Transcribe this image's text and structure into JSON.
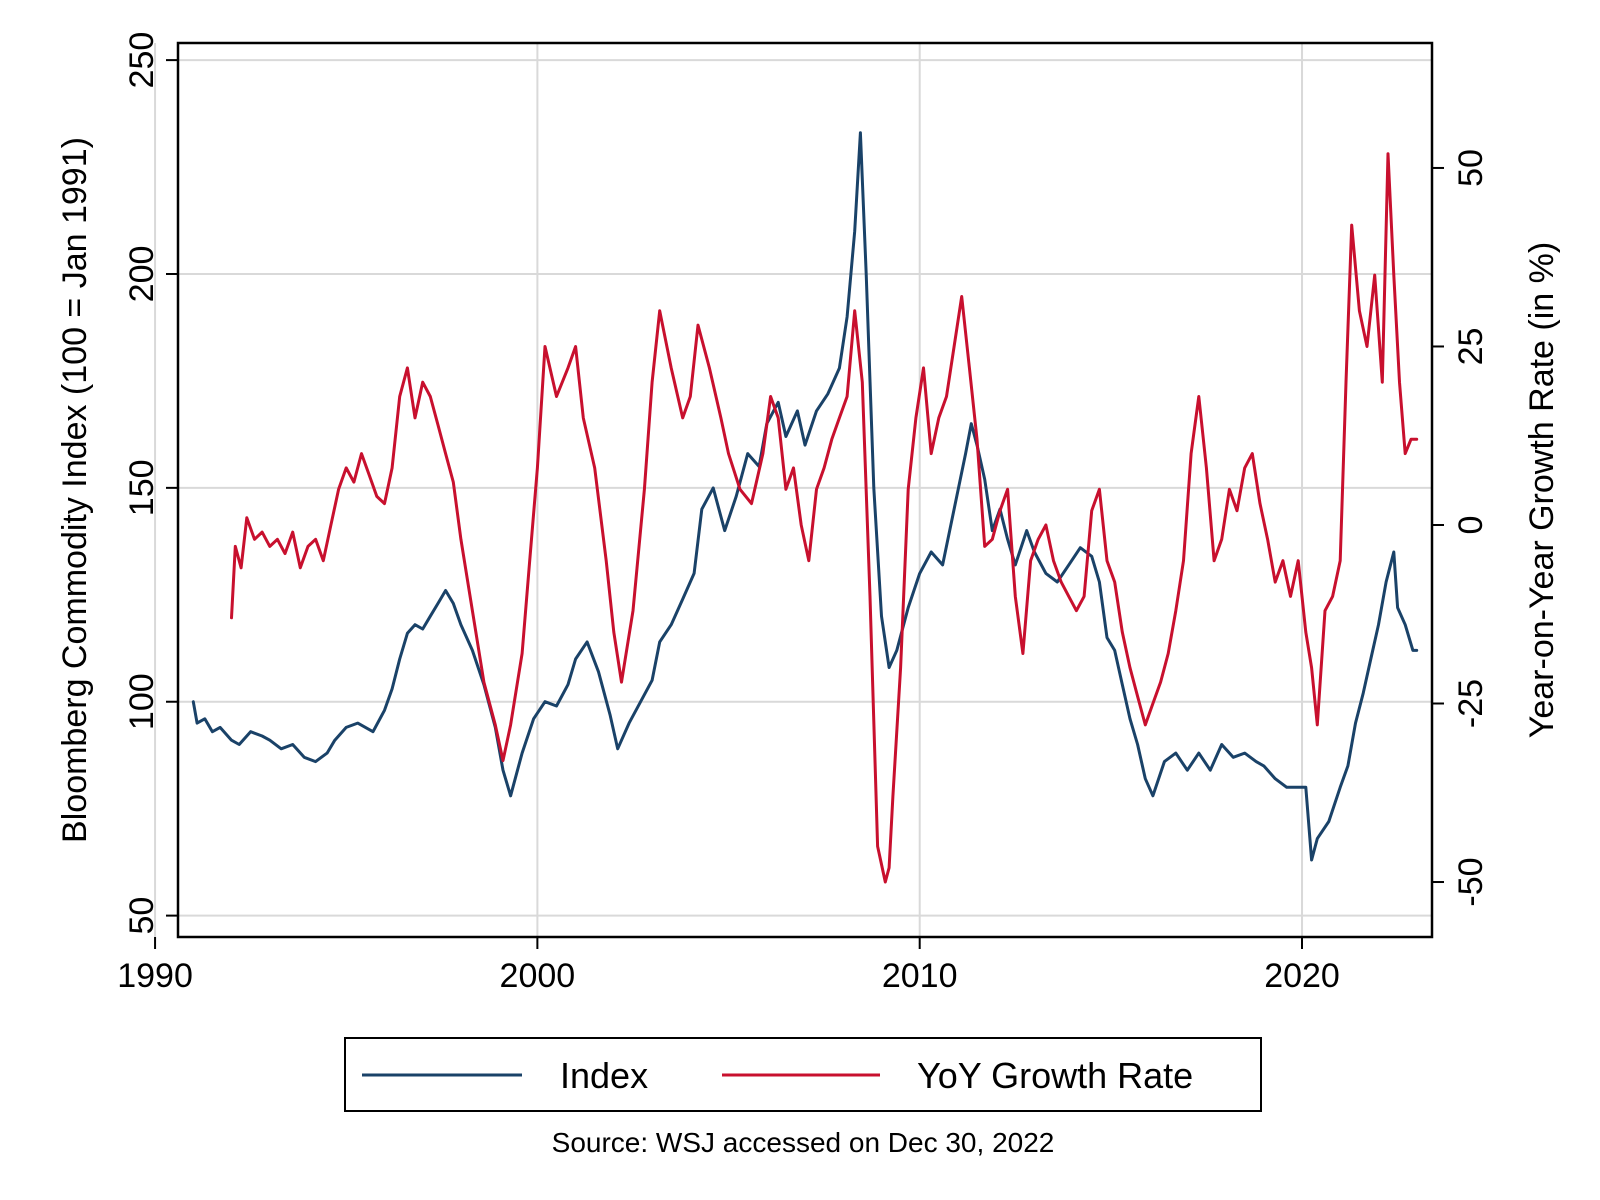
{
  "chart_data": {
    "type": "line",
    "title": "",
    "xlabel": "",
    "ylabel": "Bloomberg Commodity Index (100 = Jan 1991)",
    "y2label": "Year-on-Year Growth Rate (in %)",
    "source_note": "Source: WSJ accessed on Dec 30, 2022",
    "xlim": [
      1990.6,
      2023.4
    ],
    "ylim": [
      45,
      254
    ],
    "y2lim": [
      -57.7,
      67.5
    ],
    "x_ticks": [
      1990,
      2000,
      2010,
      2020
    ],
    "y_ticks": [
      50,
      100,
      150,
      200,
      250
    ],
    "y2_ticks": [
      -50,
      -25,
      0,
      25,
      50
    ],
    "grid": true,
    "legend_position": "bottom",
    "series": [
      {
        "name": "Index",
        "axis": "left",
        "color": "#1a4268",
        "x": [
          1991.0,
          1991.1,
          1991.3,
          1991.5,
          1991.7,
          1992.0,
          1992.2,
          1992.5,
          1992.8,
          1993.0,
          1993.3,
          1993.6,
          1993.9,
          1994.2,
          1994.5,
          1994.7,
          1995.0,
          1995.3,
          1995.7,
          1996.0,
          1996.2,
          1996.4,
          1996.6,
          1996.8,
          1997.0,
          1997.2,
          1997.4,
          1997.6,
          1997.8,
          1998.0,
          1998.3,
          1998.6,
          1998.9,
          1999.1,
          1999.3,
          1999.6,
          1999.9,
          2000.2,
          2000.5,
          2000.8,
          2001.0,
          2001.3,
          2001.6,
          2001.9,
          2002.1,
          2002.4,
          2002.7,
          2003.0,
          2003.2,
          2003.5,
          2003.8,
          2004.1,
          2004.3,
          2004.6,
          2004.9,
          2005.2,
          2005.5,
          2005.8,
          2006.0,
          2006.3,
          2006.5,
          2006.8,
          2007.0,
          2007.3,
          2007.6,
          2007.9,
          2008.1,
          2008.3,
          2008.45,
          2008.6,
          2008.8,
          2009.0,
          2009.2,
          2009.4,
          2009.7,
          2010.0,
          2010.3,
          2010.6,
          2010.9,
          2011.2,
          2011.35,
          2011.5,
          2011.7,
          2011.9,
          2012.1,
          2012.3,
          2012.5,
          2012.8,
          2013.0,
          2013.3,
          2013.6,
          2013.9,
          2014.2,
          2014.5,
          2014.7,
          2014.9,
          2015.1,
          2015.3,
          2015.5,
          2015.7,
          2015.9,
          2016.1,
          2016.4,
          2016.7,
          2017.0,
          2017.3,
          2017.6,
          2017.9,
          2018.2,
          2018.5,
          2018.8,
          2019.0,
          2019.3,
          2019.6,
          2019.9,
          2020.1,
          2020.25,
          2020.4,
          2020.7,
          2021.0,
          2021.2,
          2021.4,
          2021.6,
          2021.8,
          2022.0,
          2022.2,
          2022.4,
          2022.5,
          2022.7,
          2022.9,
          2023.0
        ],
        "y": [
          100,
          95,
          96,
          93,
          94,
          91,
          90,
          93,
          92,
          91,
          89,
          90,
          87,
          86,
          88,
          91,
          94,
          95,
          93,
          98,
          103,
          110,
          116,
          118,
          117,
          120,
          123,
          126,
          123,
          118,
          112,
          104,
          94,
          84,
          78,
          88,
          96,
          100,
          99,
          104,
          110,
          114,
          107,
          97,
          89,
          95,
          100,
          105,
          114,
          118,
          124,
          130,
          145,
          150,
          140,
          148,
          158,
          155,
          165,
          170,
          162,
          168,
          160,
          168,
          172,
          178,
          190,
          210,
          233,
          200,
          150,
          120,
          108,
          112,
          122,
          130,
          135,
          132,
          145,
          158,
          165,
          160,
          152,
          140,
          145,
          138,
          132,
          140,
          135,
          130,
          128,
          132,
          136,
          134,
          128,
          115,
          112,
          104,
          96,
          90,
          82,
          78,
          86,
          88,
          84,
          88,
          84,
          90,
          87,
          88,
          86,
          85,
          82,
          80,
          80,
          80,
          63,
          68,
          72,
          80,
          85,
          95,
          102,
          110,
          118,
          128,
          135,
          122,
          118,
          112,
          112
        ]
      },
      {
        "name": "YoY Growth Rate",
        "axis": "right",
        "color": "#c8102e",
        "x": [
          1992.0,
          1992.1,
          1992.25,
          1992.4,
          1992.6,
          1992.8,
          1993.0,
          1993.2,
          1993.4,
          1993.6,
          1993.8,
          1994.0,
          1994.2,
          1994.4,
          1994.6,
          1994.8,
          1995.0,
          1995.2,
          1995.4,
          1995.6,
          1995.8,
          1996.0,
          1996.2,
          1996.4,
          1996.6,
          1996.8,
          1997.0,
          1997.2,
          1997.4,
          1997.6,
          1997.8,
          1998.0,
          1998.3,
          1998.6,
          1998.9,
          1999.1,
          1999.3,
          1999.6,
          1999.8,
          2000.0,
          2000.2,
          2000.5,
          2000.8,
          2001.0,
          2001.2,
          2001.5,
          2001.8,
          2002.0,
          2002.2,
          2002.5,
          2002.8,
          2003.0,
          2003.2,
          2003.5,
          2003.8,
          2004.0,
          2004.2,
          2004.5,
          2004.8,
          2005.0,
          2005.3,
          2005.6,
          2005.9,
          2006.1,
          2006.3,
          2006.5,
          2006.7,
          2006.9,
          2007.1,
          2007.3,
          2007.5,
          2007.7,
          2007.9,
          2008.1,
          2008.3,
          2008.5,
          2008.7,
          2008.9,
          2009.1,
          2009.2,
          2009.3,
          2009.5,
          2009.7,
          2009.9,
          2010.1,
          2010.3,
          2010.5,
          2010.7,
          2010.9,
          2011.1,
          2011.3,
          2011.5,
          2011.7,
          2011.9,
          2012.1,
          2012.3,
          2012.5,
          2012.7,
          2012.9,
          2013.1,
          2013.3,
          2013.5,
          2013.7,
          2013.9,
          2014.1,
          2014.3,
          2014.5,
          2014.7,
          2014.9,
          2015.1,
          2015.3,
          2015.5,
          2015.7,
          2015.9,
          2016.1,
          2016.3,
          2016.5,
          2016.7,
          2016.9,
          2017.1,
          2017.3,
          2017.5,
          2017.7,
          2017.9,
          2018.1,
          2018.3,
          2018.5,
          2018.7,
          2018.9,
          2019.1,
          2019.3,
          2019.5,
          2019.7,
          2019.9,
          2020.1,
          2020.25,
          2020.4,
          2020.6,
          2020.8,
          2021.0,
          2021.15,
          2021.3,
          2021.5,
          2021.7,
          2021.9,
          2022.1,
          2022.25,
          2022.4,
          2022.55,
          2022.7,
          2022.85,
          2023.0
        ],
        "y": [
          -13,
          -3,
          -6,
          1,
          -2,
          -1,
          -3,
          -2,
          -4,
          -1,
          -6,
          -3,
          -2,
          -5,
          0,
          5,
          8,
          6,
          10,
          7,
          4,
          3,
          8,
          18,
          22,
          15,
          20,
          18,
          14,
          10,
          6,
          -2,
          -12,
          -22,
          -28,
          -33,
          -28,
          -18,
          -5,
          8,
          25,
          18,
          22,
          25,
          15,
          8,
          -5,
          -15,
          -22,
          -12,
          5,
          20,
          30,
          22,
          15,
          18,
          28,
          22,
          15,
          10,
          5,
          3,
          10,
          18,
          15,
          5,
          8,
          0,
          -5,
          5,
          8,
          12,
          15,
          18,
          30,
          20,
          -10,
          -45,
          -50,
          -48,
          -38,
          -20,
          5,
          15,
          22,
          10,
          15,
          18,
          25,
          32,
          22,
          12,
          -3,
          -2,
          2,
          5,
          -10,
          -18,
          -5,
          -2,
          0,
          -5,
          -8,
          -10,
          -12,
          -10,
          2,
          5,
          -5,
          -8,
          -15,
          -20,
          -24,
          -28,
          -25,
          -22,
          -18,
          -12,
          -5,
          10,
          18,
          8,
          -5,
          -2,
          5,
          2,
          8,
          10,
          3,
          -2,
          -8,
          -5,
          -10,
          -5,
          -15,
          -20,
          -28,
          -12,
          -10,
          -5,
          20,
          42,
          30,
          25,
          35,
          20,
          52,
          35,
          20,
          10,
          12,
          12
        ]
      }
    ]
  },
  "legend": {
    "items": [
      "Index",
      "YoY Growth Rate"
    ]
  }
}
